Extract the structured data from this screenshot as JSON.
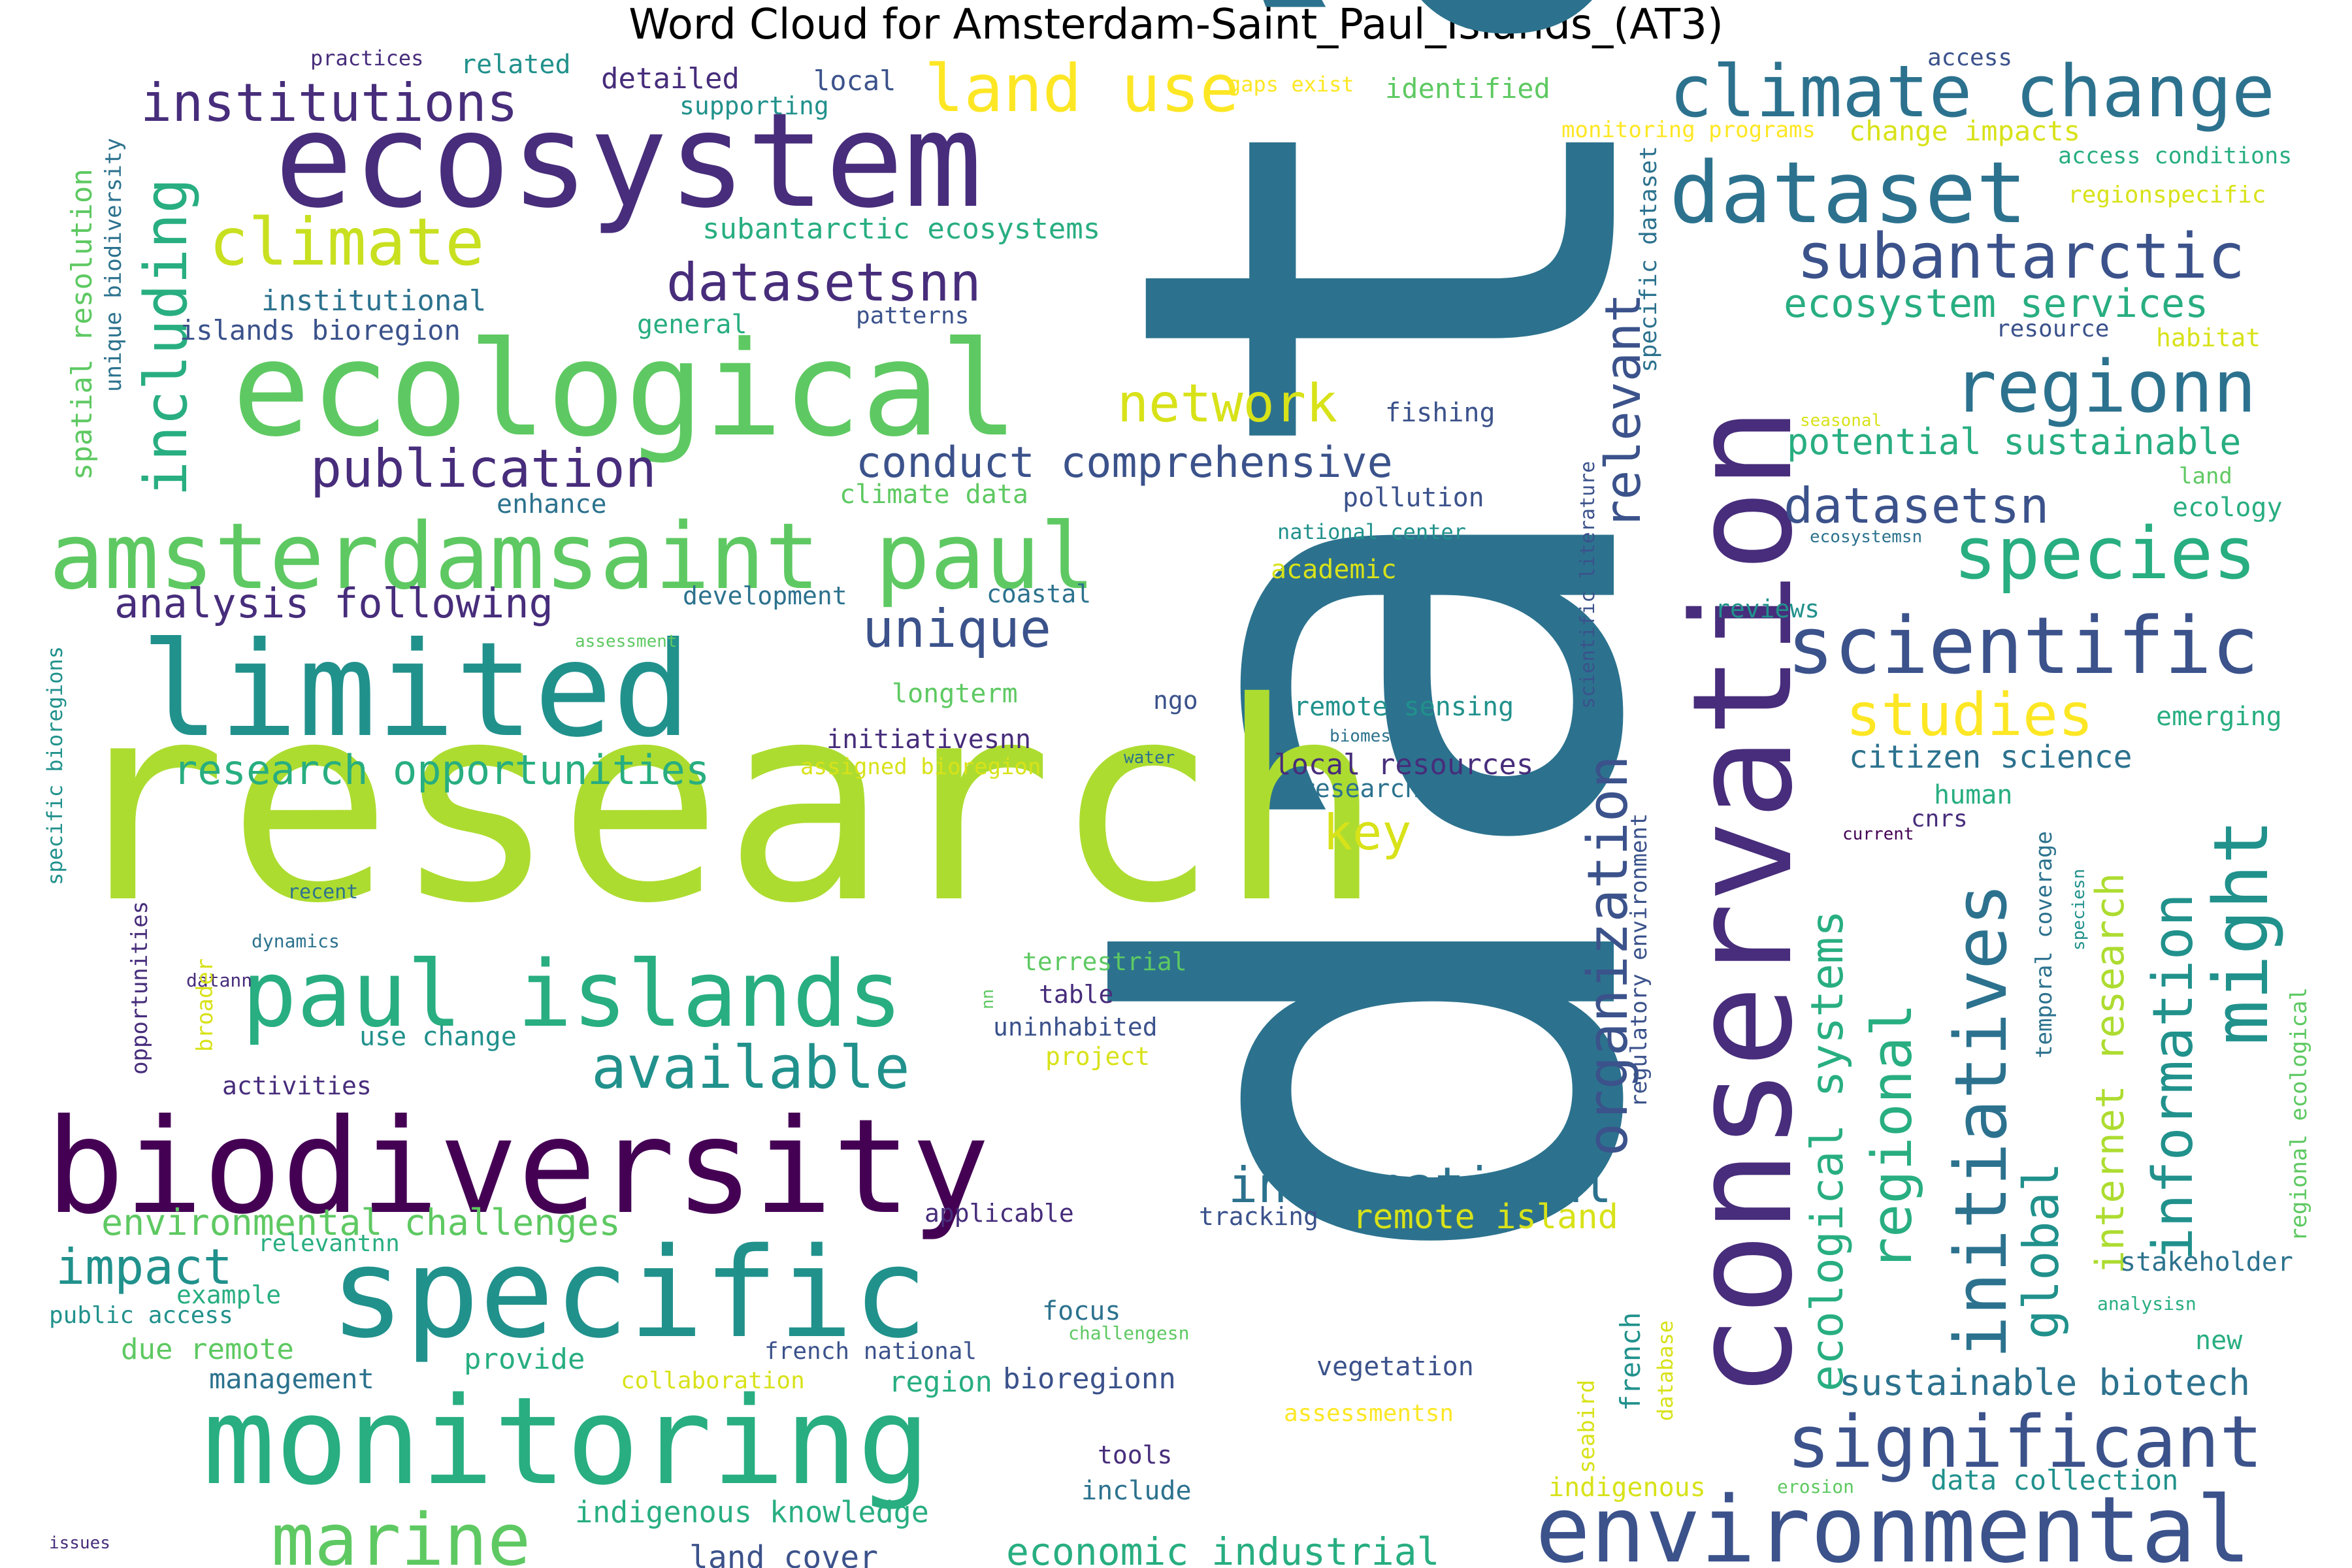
{
  "title": "Word Cloud for Amsterdam-Saint_Paul_Islands_(AT3)",
  "palette": {
    "dark_purple": "#440154",
    "indigo": "#472d7b",
    "slate_blue": "#3b528b",
    "steel_blue": "#2c728e",
    "teal": "#21918c",
    "green_teal": "#28ae80",
    "green": "#5ec962",
    "lime": "#addc30",
    "yellow": "#fde725"
  },
  "words": [
    {
      "text": "data",
      "weight": 1.0,
      "color": "#2c728e",
      "orientation": "vertical"
    },
    {
      "text": "research",
      "weight": 0.9,
      "color": "#addc30",
      "orientation": "horizontal"
    },
    {
      "text": "ecosystem",
      "weight": 0.6,
      "color": "#472d7b",
      "orientation": "horizontal"
    },
    {
      "text": "conservation",
      "weight": 0.62,
      "color": "#472d7b",
      "orientation": "vertical"
    },
    {
      "text": "ecological",
      "weight": 0.58,
      "color": "#5ec962",
      "orientation": "horizontal"
    },
    {
      "text": "biodiversity",
      "weight": 0.55,
      "color": "#440154",
      "orientation": "horizontal"
    },
    {
      "text": "limited",
      "weight": 0.52,
      "color": "#21918c",
      "orientation": "horizontal"
    },
    {
      "text": "monitoring",
      "weight": 0.5,
      "color": "#28ae80",
      "orientation": "horizontal"
    },
    {
      "text": "specific",
      "weight": 0.48,
      "color": "#21918c",
      "orientation": "horizontal"
    },
    {
      "text": "amsterdamsaint paul",
      "weight": 0.4,
      "color": "#5ec962",
      "orientation": "horizontal"
    },
    {
      "text": "environmental",
      "weight": 0.36,
      "color": "#3b528b",
      "orientation": "horizontal"
    },
    {
      "text": "paul islands",
      "weight": 0.38,
      "color": "#28ae80",
      "orientation": "horizontal"
    },
    {
      "text": "climate change",
      "weight": 0.3,
      "color": "#2c728e",
      "orientation": "horizontal"
    },
    {
      "text": "dataset",
      "weight": 0.32,
      "color": "#2c728e",
      "orientation": "horizontal"
    },
    {
      "text": "scientific",
      "weight": 0.3,
      "color": "#3b528b",
      "orientation": "horizontal"
    },
    {
      "text": "significant",
      "weight": 0.29,
      "color": "#3b528b",
      "orientation": "horizontal"
    },
    {
      "text": "regionn",
      "weight": 0.28,
      "color": "#2c728e",
      "orientation": "horizontal"
    },
    {
      "text": "species",
      "weight": 0.28,
      "color": "#28ae80",
      "orientation": "horizontal"
    },
    {
      "text": "marine",
      "weight": 0.27,
      "color": "#5ec962",
      "orientation": "horizontal"
    },
    {
      "text": "initiatives",
      "weight": 0.27,
      "color": "#2c728e",
      "orientation": "vertical"
    },
    {
      "text": "might",
      "weight": 0.27,
      "color": "#21918c",
      "orientation": "vertical"
    },
    {
      "text": "land use",
      "weight": 0.25,
      "color": "#fde725",
      "orientation": "horizontal"
    },
    {
      "text": "climate",
      "weight": 0.25,
      "color": "#c8e020",
      "orientation": "horizontal"
    },
    {
      "text": "subantarctic",
      "weight": 0.25,
      "color": "#3b528b",
      "orientation": "horizontal"
    },
    {
      "text": "institutions",
      "weight": 0.23,
      "color": "#472d7b",
      "orientation": "horizontal"
    },
    {
      "text": "including",
      "weight": 0.23,
      "color": "#28ae80",
      "orientation": "vertical"
    },
    {
      "text": "datasetsnn",
      "weight": 0.22,
      "color": "#472d7b",
      "orientation": "horizontal"
    },
    {
      "text": "publication",
      "weight": 0.22,
      "color": "#472d7b",
      "orientation": "horizontal"
    },
    {
      "text": "network",
      "weight": 0.22,
      "color": "#d8e219",
      "orientation": "horizontal"
    },
    {
      "text": "available",
      "weight": 0.22,
      "color": "#21918c",
      "orientation": "horizontal"
    },
    {
      "text": "unique",
      "weight": 0.2,
      "color": "#3b528b",
      "orientation": "horizontal"
    },
    {
      "text": "studies",
      "weight": 0.22,
      "color": "#fde725",
      "orientation": "horizontal"
    },
    {
      "text": "information",
      "weight": 0.22,
      "color": "#21918c",
      "orientation": "vertical"
    },
    {
      "text": "organization",
      "weight": 0.22,
      "color": "#3b528b",
      "orientation": "vertical"
    },
    {
      "text": "regional",
      "weight": 0.22,
      "color": "#28ae80",
      "orientation": "vertical"
    },
    {
      "text": "international",
      "weight": 0.2,
      "color": "#2c728e",
      "orientation": "horizontal"
    },
    {
      "text": "relevant",
      "weight": 0.2,
      "color": "#3b528b",
      "orientation": "vertical"
    },
    {
      "text": "datasetsn",
      "weight": 0.2,
      "color": "#3b528b",
      "orientation": "horizontal"
    },
    {
      "text": "impact",
      "weight": 0.2,
      "color": "#21918c",
      "orientation": "horizontal"
    },
    {
      "text": "key",
      "weight": 0.2,
      "color": "#d8e219",
      "orientation": "horizontal"
    },
    {
      "text": "global",
      "weight": 0.2,
      "color": "#21918c",
      "orientation": "vertical"
    },
    {
      "text": "ecological systems",
      "weight": 0.17,
      "color": "#28ae80",
      "orientation": "vertical"
    },
    {
      "text": "conduct comprehensive",
      "weight": 0.17,
      "color": "#3b528b",
      "orientation": "horizontal"
    },
    {
      "text": "analysis following",
      "weight": 0.16,
      "color": "#472d7b",
      "orientation": "horizontal"
    },
    {
      "text": "research opportunities",
      "weight": 0.16,
      "color": "#28ae80",
      "orientation": "horizontal"
    },
    {
      "text": "ecosystem services",
      "weight": 0.15,
      "color": "#28ae80",
      "orientation": "horizontal"
    },
    {
      "text": "potential sustainable",
      "weight": 0.14,
      "color": "#28ae80",
      "orientation": "horizontal"
    },
    {
      "text": "internet research",
      "weight": 0.15,
      "color": "#addc30",
      "orientation": "vertical"
    },
    {
      "text": "environmental challenges",
      "weight": 0.14,
      "color": "#5ec962",
      "orientation": "horizontal"
    },
    {
      "text": "economic industrial",
      "weight": 0.14,
      "color": "#28ae80",
      "orientation": "horizontal"
    },
    {
      "text": "sustainable biotech",
      "weight": 0.14,
      "color": "#2c728e",
      "orientation": "horizontal"
    },
    {
      "text": "remote island",
      "weight": 0.13,
      "color": "#d8e219",
      "orientation": "horizontal"
    },
    {
      "text": "citizen science",
      "weight": 0.12,
      "color": "#2c728e",
      "orientation": "horizontal"
    },
    {
      "text": "indigenous knowledge",
      "weight": 0.12,
      "color": "#28ae80",
      "orientation": "horizontal"
    },
    {
      "text": "land cover",
      "weight": 0.12,
      "color": "#3b528b",
      "orientation": "horizontal"
    },
    {
      "text": "subantarctic ecosystems",
      "weight": 0.11,
      "color": "#28ae80",
      "orientation": "horizontal"
    },
    {
      "text": "institutional",
      "weight": 0.11,
      "color": "#2c728e",
      "orientation": "horizontal"
    },
    {
      "text": "islands bioregion",
      "weight": 0.11,
      "color": "#3b528b",
      "orientation": "horizontal"
    },
    {
      "text": "detailed",
      "weight": 0.11,
      "color": "#472d7b",
      "orientation": "horizontal"
    },
    {
      "text": "local",
      "weight": 0.11,
      "color": "#3b528b",
      "orientation": "horizontal"
    },
    {
      "text": "related",
      "weight": 0.1,
      "color": "#21918c",
      "orientation": "horizontal"
    },
    {
      "text": "identified",
      "weight": 0.11,
      "color": "#5ec962",
      "orientation": "horizontal"
    },
    {
      "text": "supporting",
      "weight": 0.1,
      "color": "#21918c",
      "orientation": "horizontal"
    },
    {
      "text": "general",
      "weight": 0.1,
      "color": "#28ae80",
      "orientation": "horizontal"
    },
    {
      "text": "patterns",
      "weight": 0.09,
      "color": "#3b528b",
      "orientation": "horizontal"
    },
    {
      "text": "practices",
      "weight": 0.08,
      "color": "#472d7b",
      "orientation": "horizontal"
    },
    {
      "text": "gaps exist",
      "weight": 0.08,
      "color": "#fde725",
      "orientation": "horizontal"
    },
    {
      "text": "access",
      "weight": 0.09,
      "color": "#3b528b",
      "orientation": "horizontal"
    },
    {
      "text": "monitoring programs",
      "weight": 0.09,
      "color": "#fde725",
      "orientation": "horizontal"
    },
    {
      "text": "change impacts",
      "weight": 0.1,
      "color": "#d8e219",
      "orientation": "horizontal"
    },
    {
      "text": "access conditions",
      "weight": 0.09,
      "color": "#28ae80",
      "orientation": "horizontal"
    },
    {
      "text": "regionspecific",
      "weight": 0.09,
      "color": "#d8e219",
      "orientation": "horizontal"
    },
    {
      "text": "resource",
      "weight": 0.09,
      "color": "#3b528b",
      "orientation": "horizontal"
    },
    {
      "text": "habitat",
      "weight": 0.09,
      "color": "#d8e219",
      "orientation": "horizontal"
    },
    {
      "text": "fishing",
      "weight": 0.1,
      "color": "#3b528b",
      "orientation": "horizontal"
    },
    {
      "text": "climate data",
      "weight": 0.1,
      "color": "#5ec962",
      "orientation": "horizontal"
    },
    {
      "text": "enhance",
      "weight": 0.1,
      "color": "#2c728e",
      "orientation": "horizontal"
    },
    {
      "text": "pollution",
      "weight": 0.1,
      "color": "#3b528b",
      "orientation": "horizontal"
    },
    {
      "text": "national center",
      "weight": 0.08,
      "color": "#21918c",
      "orientation": "horizontal"
    },
    {
      "text": "academic",
      "weight": 0.1,
      "color": "#d8e219",
      "orientation": "horizontal"
    },
    {
      "text": "development",
      "weight": 0.1,
      "color": "#2c728e",
      "orientation": "horizontal"
    },
    {
      "text": "coastal",
      "weight": 0.1,
      "color": "#2c728e",
      "orientation": "horizontal"
    },
    {
      "text": "seasonal",
      "weight": 0.06,
      "color": "#d8e219",
      "orientation": "horizontal"
    },
    {
      "text": "land",
      "weight": 0.08,
      "color": "#5ec962",
      "orientation": "horizontal"
    },
    {
      "text": "ecology",
      "weight": 0.09,
      "color": "#28ae80",
      "orientation": "horizontal"
    },
    {
      "text": "ecosystemsn",
      "weight": 0.06,
      "color": "#2c728e",
      "orientation": "horizontal"
    },
    {
      "text": "reviews",
      "weight": 0.09,
      "color": "#21918c",
      "orientation": "horizontal"
    },
    {
      "text": "emerging",
      "weight": 0.09,
      "color": "#28ae80",
      "orientation": "horizontal"
    },
    {
      "text": "longterm",
      "weight": 0.1,
      "color": "#5ec962",
      "orientation": "horizontal"
    },
    {
      "text": "ngo",
      "weight": 0.08,
      "color": "#3b528b",
      "orientation": "horizontal"
    },
    {
      "text": "remote sensing",
      "weight": 0.11,
      "color": "#21918c",
      "orientation": "horizontal"
    },
    {
      "text": "biomes",
      "weight": 0.06,
      "color": "#2c728e",
      "orientation": "horizontal"
    },
    {
      "text": "initiativesnn",
      "weight": 0.1,
      "color": "#472d7b",
      "orientation": "horizontal"
    },
    {
      "text": "assigned bioregion",
      "weight": 0.09,
      "color": "#d8e219",
      "orientation": "horizontal"
    },
    {
      "text": "water",
      "weight": 0.06,
      "color": "#2c728e",
      "orientation": "horizontal"
    },
    {
      "text": "local resources",
      "weight": 0.11,
      "color": "#472d7b",
      "orientation": "horizontal"
    },
    {
      "text": "researcher",
      "weight": 0.09,
      "color": "#2c728e",
      "orientation": "horizontal"
    },
    {
      "text": "human",
      "weight": 0.09,
      "color": "#28ae80",
      "orientation": "horizontal"
    },
    {
      "text": "cnrs",
      "weight": 0.08,
      "color": "#472d7b",
      "orientation": "horizontal"
    },
    {
      "text": "current",
      "weight": 0.06,
      "color": "#440154",
      "orientation": "horizontal"
    },
    {
      "text": "assessment",
      "weight": 0.06,
      "color": "#5ec962",
      "orientation": "horizontal"
    },
    {
      "text": "recent",
      "weight": 0.07,
      "color": "#2c728e",
      "orientation": "horizontal"
    },
    {
      "text": "dynamics",
      "weight": 0.07,
      "color": "#2c728e",
      "orientation": "horizontal"
    },
    {
      "text": "datann",
      "weight": 0.07,
      "color": "#472d7b",
      "orientation": "horizontal"
    },
    {
      "text": "terrestrial",
      "weight": 0.09,
      "color": "#5ec962",
      "orientation": "horizontal"
    },
    {
      "text": "table",
      "weight": 0.09,
      "color": "#472d7b",
      "orientation": "horizontal"
    },
    {
      "text": "uninhabited",
      "weight": 0.09,
      "color": "#3b528b",
      "orientation": "horizontal"
    },
    {
      "text": "project",
      "weight": 0.09,
      "color": "#d8e219",
      "orientation": "horizontal"
    },
    {
      "text": "use change",
      "weight": 0.09,
      "color": "#21918c",
      "orientation": "horizontal"
    },
    {
      "text": "activities",
      "weight": 0.09,
      "color": "#472d7b",
      "orientation": "horizontal"
    },
    {
      "text": "applicable",
      "weight": 0.09,
      "color": "#472d7b",
      "orientation": "horizontal"
    },
    {
      "text": "tracking",
      "weight": 0.09,
      "color": "#3b528b",
      "orientation": "horizontal"
    },
    {
      "text": "relevantnn",
      "weight": 0.08,
      "color": "#28ae80",
      "orientation": "horizontal"
    },
    {
      "text": "example",
      "weight": 0.08,
      "color": "#28ae80",
      "orientation": "horizontal"
    },
    {
      "text": "public access",
      "weight": 0.08,
      "color": "#21918c",
      "orientation": "horizontal"
    },
    {
      "text": "due remote",
      "weight": 0.1,
      "color": "#5ec962",
      "orientation": "horizontal"
    },
    {
      "text": "management",
      "weight": 0.1,
      "color": "#2c728e",
      "orientation": "horizontal"
    },
    {
      "text": "provide",
      "weight": 0.1,
      "color": "#28ae80",
      "orientation": "horizontal"
    },
    {
      "text": "french national",
      "weight": 0.08,
      "color": "#3b528b",
      "orientation": "horizontal"
    },
    {
      "text": "focus",
      "weight": 0.09,
      "color": "#2c728e",
      "orientation": "horizontal"
    },
    {
      "text": "challengesn",
      "weight": 0.06,
      "color": "#5ec962",
      "orientation": "horizontal"
    },
    {
      "text": "collaboration",
      "weight": 0.09,
      "color": "#d8e219",
      "orientation": "horizontal"
    },
    {
      "text": "region",
      "weight": 0.1,
      "color": "#28ae80",
      "orientation": "horizontal"
    },
    {
      "text": "bioregionn",
      "weight": 0.1,
      "color": "#3b528b",
      "orientation": "horizontal"
    },
    {
      "text": "vegetation",
      "weight": 0.09,
      "color": "#3b528b",
      "orientation": "horizontal"
    },
    {
      "text": "assessmentsn",
      "weight": 0.08,
      "color": "#fde725",
      "orientation": "horizontal"
    },
    {
      "text": "tools",
      "weight": 0.09,
      "color": "#472d7b",
      "orientation": "horizontal"
    },
    {
      "text": "include",
      "weight": 0.1,
      "color": "#2c728e",
      "orientation": "horizontal"
    },
    {
      "text": "indigenous",
      "weight": 0.09,
      "color": "#d8e219",
      "orientation": "horizontal"
    },
    {
      "text": "erosion",
      "weight": 0.06,
      "color": "#5ec962",
      "orientation": "horizontal"
    },
    {
      "text": "data collection",
      "weight": 0.1,
      "color": "#21918c",
      "orientation": "horizontal"
    },
    {
      "text": "new",
      "weight": 0.09,
      "color": "#28ae80",
      "orientation": "horizontal"
    },
    {
      "text": "stakeholder",
      "weight": 0.09,
      "color": "#2c728e",
      "orientation": "horizontal"
    },
    {
      "text": "analysisn",
      "weight": 0.06,
      "color": "#28ae80",
      "orientation": "horizontal"
    },
    {
      "text": "issues",
      "weight": 0.06,
      "color": "#472d7b",
      "orientation": "horizontal"
    },
    {
      "text": "spatial resolution",
      "weight": 0.11,
      "color": "#5ec962",
      "orientation": "vertical"
    },
    {
      "text": "unique biodiversity",
      "weight": 0.09,
      "color": "#2c728e",
      "orientation": "vertical"
    },
    {
      "text": "specific bioregions",
      "weight": 0.08,
      "color": "#21918c",
      "orientation": "vertical"
    },
    {
      "text": "opportunities",
      "weight": 0.08,
      "color": "#472d7b",
      "orientation": "vertical"
    },
    {
      "text": "broader",
      "weight": 0.08,
      "color": "#d8e219",
      "orientation": "vertical"
    },
    {
      "text": "nn",
      "weight": 0.06,
      "color": "#5ec962",
      "orientation": "vertical"
    },
    {
      "text": "specific dataset",
      "weight": 0.09,
      "color": "#2c728e",
      "orientation": "vertical"
    },
    {
      "text": "scientific literature",
      "weight": 0.07,
      "color": "#3b528b",
      "orientation": "vertical"
    },
    {
      "text": "regulatory environment",
      "weight": 0.08,
      "color": "#3b528b",
      "orientation": "vertical"
    },
    {
      "text": "temporal coverage",
      "weight": 0.08,
      "color": "#2c728e",
      "orientation": "vertical"
    },
    {
      "text": "speciesn",
      "weight": 0.06,
      "color": "#21918c",
      "orientation": "vertical"
    },
    {
      "text": "regional ecological",
      "weight": 0.08,
      "color": "#5ec962",
      "orientation": "vertical"
    },
    {
      "text": "database",
      "weight": 0.07,
      "color": "#d8e219",
      "orientation": "vertical"
    },
    {
      "text": "seabird",
      "weight": 0.07,
      "color": "#d8e219",
      "orientation": "vertical"
    },
    {
      "text": "french",
      "weight": 0.08,
      "color": "#21918c",
      "orientation": "vertical"
    }
  ]
}
